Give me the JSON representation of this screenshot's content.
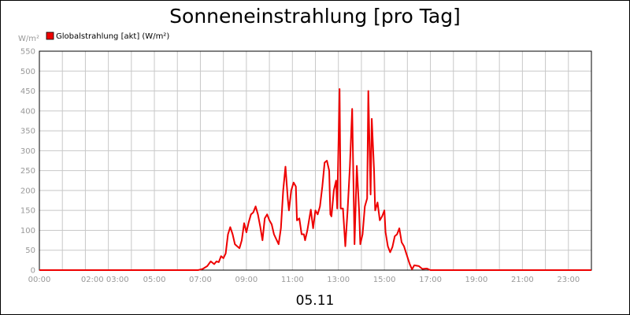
{
  "chart_data": {
    "type": "line",
    "title": "Sonneneinstrahlung [pro Tag]",
    "ylabel": "W/m²",
    "date_label": "05.11",
    "ylim": [
      0,
      550
    ],
    "yticks": [
      0,
      50,
      100,
      150,
      200,
      250,
      300,
      350,
      400,
      450,
      500,
      550
    ],
    "xlim": [
      0,
      24
    ],
    "xtick_labels": [
      {
        "x": 0,
        "label": "00:00"
      },
      {
        "x": 2.85,
        "label": "02:00 03:00"
      },
      {
        "x": 5,
        "label": "05:00"
      },
      {
        "x": 7,
        "label": "07:00"
      },
      {
        "x": 9,
        "label": "09:00"
      },
      {
        "x": 11,
        "label": "11:00"
      },
      {
        "x": 13,
        "label": "13:00"
      },
      {
        "x": 15,
        "label": "15:00"
      },
      {
        "x": 17,
        "label": "17:00"
      },
      {
        "x": 19,
        "label": "19:00"
      },
      {
        "x": 21,
        "label": "21:00"
      },
      {
        "x": 23,
        "label": "23:00"
      }
    ],
    "grid": true,
    "legend_position": "top-left",
    "series": [
      {
        "name": "Globalstrahlung [akt] (W/m²)",
        "color": "#ee0000",
        "points": [
          [
            0,
            0
          ],
          [
            6.0,
            0
          ],
          [
            6.9,
            0
          ],
          [
            7.1,
            3
          ],
          [
            7.3,
            10
          ],
          [
            7.45,
            22
          ],
          [
            7.6,
            15
          ],
          [
            7.7,
            22
          ],
          [
            7.8,
            20
          ],
          [
            7.9,
            35
          ],
          [
            8.0,
            30
          ],
          [
            8.1,
            42
          ],
          [
            8.2,
            90
          ],
          [
            8.3,
            108
          ],
          [
            8.4,
            90
          ],
          [
            8.5,
            65
          ],
          [
            8.6,
            60
          ],
          [
            8.7,
            55
          ],
          [
            8.8,
            75
          ],
          [
            8.9,
            118
          ],
          [
            9.0,
            95
          ],
          [
            9.1,
            120
          ],
          [
            9.2,
            140
          ],
          [
            9.3,
            145
          ],
          [
            9.4,
            160
          ],
          [
            9.5,
            140
          ],
          [
            9.6,
            110
          ],
          [
            9.7,
            75
          ],
          [
            9.8,
            130
          ],
          [
            9.9,
            140
          ],
          [
            10.0,
            125
          ],
          [
            10.1,
            115
          ],
          [
            10.2,
            90
          ],
          [
            10.4,
            65
          ],
          [
            10.5,
            105
          ],
          [
            10.6,
            200
          ],
          [
            10.7,
            260
          ],
          [
            10.8,
            180
          ],
          [
            10.85,
            150
          ],
          [
            10.95,
            200
          ],
          [
            11.05,
            220
          ],
          [
            11.15,
            210
          ],
          [
            11.2,
            125
          ],
          [
            11.3,
            130
          ],
          [
            11.4,
            90
          ],
          [
            11.5,
            90
          ],
          [
            11.55,
            75
          ],
          [
            11.65,
            100
          ],
          [
            11.8,
            152
          ],
          [
            11.9,
            105
          ],
          [
            12.0,
            150
          ],
          [
            12.1,
            140
          ],
          [
            12.2,
            160
          ],
          [
            12.3,
            210
          ],
          [
            12.4,
            270
          ],
          [
            12.5,
            275
          ],
          [
            12.6,
            250
          ],
          [
            12.65,
            140
          ],
          [
            12.7,
            135
          ],
          [
            12.8,
            200
          ],
          [
            12.9,
            225
          ],
          [
            12.95,
            155
          ],
          [
            13.05,
            455
          ],
          [
            13.1,
            155
          ],
          [
            13.2,
            155
          ],
          [
            13.3,
            60
          ],
          [
            13.4,
            150
          ],
          [
            13.5,
            260
          ],
          [
            13.6,
            405
          ],
          [
            13.7,
            65
          ],
          [
            13.8,
            262
          ],
          [
            13.9,
            150
          ],
          [
            13.95,
            65
          ],
          [
            14.05,
            90
          ],
          [
            14.15,
            160
          ],
          [
            14.25,
            180
          ],
          [
            14.3,
            450
          ],
          [
            14.4,
            190
          ],
          [
            14.45,
            380
          ],
          [
            14.55,
            250
          ],
          [
            14.6,
            150
          ],
          [
            14.7,
            170
          ],
          [
            14.8,
            125
          ],
          [
            14.9,
            135
          ],
          [
            15.0,
            150
          ],
          [
            15.05,
            95
          ],
          [
            15.15,
            60
          ],
          [
            15.25,
            45
          ],
          [
            15.35,
            58
          ],
          [
            15.45,
            85
          ],
          [
            15.55,
            90
          ],
          [
            15.65,
            105
          ],
          [
            15.75,
            70
          ],
          [
            15.85,
            60
          ],
          [
            15.95,
            42
          ],
          [
            16.1,
            15
          ],
          [
            16.2,
            2
          ],
          [
            16.3,
            12
          ],
          [
            16.5,
            10
          ],
          [
            16.65,
            3
          ],
          [
            16.85,
            4
          ],
          [
            17.0,
            0
          ],
          [
            24,
            0
          ]
        ]
      }
    ]
  }
}
